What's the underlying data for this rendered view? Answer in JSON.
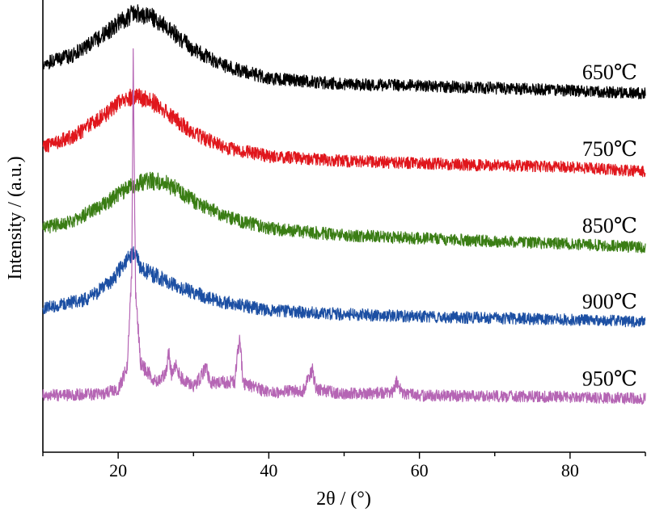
{
  "chart_data": {
    "type": "line",
    "title": "",
    "xlabel": "2θ / (°)",
    "ylabel": "Intensity / (a.u.)",
    "xlim": [
      10,
      90
    ],
    "y_ticks_shown": false,
    "x_ticks": [
      {
        "value": 20,
        "label": "20"
      },
      {
        "value": 40,
        "label": "40"
      },
      {
        "value": 60,
        "label": "60"
      },
      {
        "value": 80,
        "label": "80"
      }
    ],
    "minor_x_ticks": [
      10,
      30,
      50,
      70,
      90
    ],
    "series": [
      {
        "name": "650℃",
        "color": "#000000",
        "baseline": 4.0,
        "points": [
          [
            10,
            0.36
          ],
          [
            14,
            0.48
          ],
          [
            18,
            0.74
          ],
          [
            20,
            0.9
          ],
          [
            22,
            1.02
          ],
          [
            24,
            1.0
          ],
          [
            26,
            0.88
          ],
          [
            28,
            0.72
          ],
          [
            30,
            0.55
          ],
          [
            34,
            0.34
          ],
          [
            40,
            0.18
          ],
          [
            50,
            0.1
          ],
          [
            60,
            0.08
          ],
          [
            70,
            0.05
          ],
          [
            80,
            0.02
          ],
          [
            90,
            -0.02
          ]
        ]
      },
      {
        "name": "750℃",
        "color": "#e0161c",
        "baseline": 3.0,
        "points": [
          [
            10,
            0.28
          ],
          [
            14,
            0.42
          ],
          [
            18,
            0.68
          ],
          [
            20,
            0.85
          ],
          [
            22,
            0.95
          ],
          [
            24,
            0.9
          ],
          [
            26,
            0.78
          ],
          [
            28,
            0.62
          ],
          [
            30,
            0.46
          ],
          [
            34,
            0.28
          ],
          [
            40,
            0.16
          ],
          [
            50,
            0.1
          ],
          [
            60,
            0.07
          ],
          [
            70,
            0.04
          ],
          [
            80,
            0.02
          ],
          [
            90,
            -0.04
          ]
        ]
      },
      {
        "name": "850℃",
        "color": "#3a7d14",
        "baseline": 2.0,
        "points": [
          [
            10,
            0.22
          ],
          [
            14,
            0.32
          ],
          [
            18,
            0.52
          ],
          [
            20,
            0.66
          ],
          [
            22,
            0.78
          ],
          [
            24,
            0.84
          ],
          [
            26,
            0.82
          ],
          [
            28,
            0.72
          ],
          [
            30,
            0.58
          ],
          [
            34,
            0.38
          ],
          [
            40,
            0.22
          ],
          [
            50,
            0.13
          ],
          [
            60,
            0.09
          ],
          [
            70,
            0.05
          ],
          [
            80,
            0.02
          ],
          [
            90,
            -0.03
          ]
        ]
      },
      {
        "name": "900℃",
        "color": "#1c4fa3",
        "baseline": 1.0,
        "points": [
          [
            10,
            0.18
          ],
          [
            16,
            0.3
          ],
          [
            19,
            0.52
          ],
          [
            21,
            0.78
          ],
          [
            22,
            0.92
          ],
          [
            23,
            0.7
          ],
          [
            25,
            0.6
          ],
          [
            28,
            0.46
          ],
          [
            30,
            0.38
          ],
          [
            34,
            0.26
          ],
          [
            40,
            0.15
          ],
          [
            50,
            0.1
          ],
          [
            60,
            0.07
          ],
          [
            70,
            0.05
          ],
          [
            80,
            0.03
          ],
          [
            90,
            0.0
          ]
        ]
      },
      {
        "name": "950℃",
        "color": "#b565b4",
        "baseline": 0.0,
        "points": [
          [
            10,
            0.04
          ],
          [
            18,
            0.06
          ],
          [
            20,
            0.12
          ],
          [
            21.2,
            0.4
          ],
          [
            21.8,
            1.6
          ],
          [
            22.0,
            4.5
          ],
          [
            22.3,
            1.4
          ],
          [
            23,
            0.45
          ],
          [
            25,
            0.22
          ],
          [
            26.3,
            0.3
          ],
          [
            26.7,
            0.62
          ],
          [
            27.1,
            0.3
          ],
          [
            27.6,
            0.44
          ],
          [
            28.3,
            0.28
          ],
          [
            30,
            0.14
          ],
          [
            31.2,
            0.32
          ],
          [
            31.7,
            0.42
          ],
          [
            32.2,
            0.2
          ],
          [
            35.5,
            0.22
          ],
          [
            36.1,
            0.82
          ],
          [
            36.6,
            0.2
          ],
          [
            40,
            0.08
          ],
          [
            44.5,
            0.1
          ],
          [
            45.8,
            0.36
          ],
          [
            46.3,
            0.12
          ],
          [
            50,
            0.06
          ],
          [
            56.5,
            0.08
          ],
          [
            57,
            0.22
          ],
          [
            57.6,
            0.08
          ],
          [
            60,
            0.04
          ],
          [
            70,
            0.03
          ],
          [
            80,
            0.02
          ],
          [
            90,
            0.0
          ]
        ]
      }
    ]
  }
}
